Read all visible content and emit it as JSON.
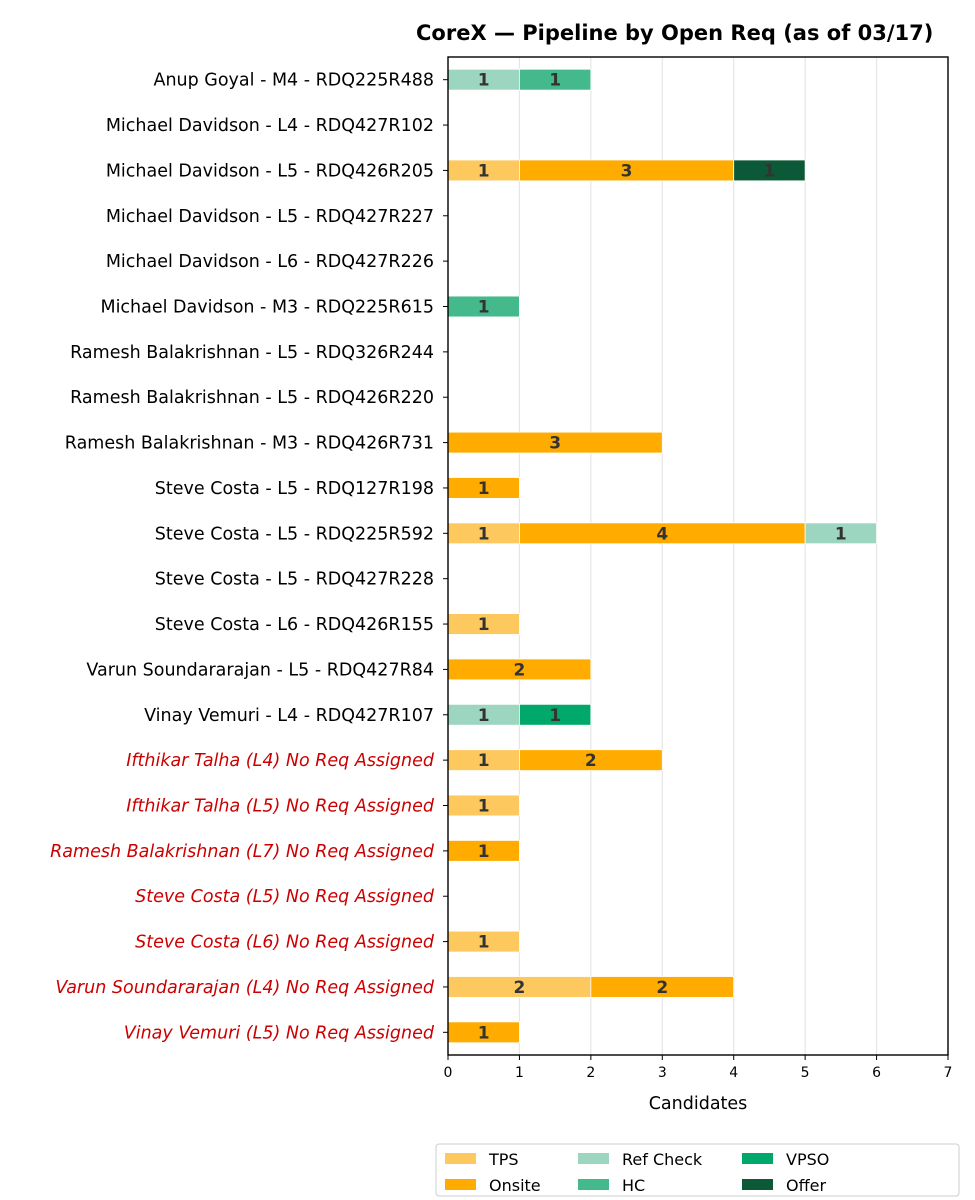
{
  "chart_data": {
    "type": "bar",
    "orientation": "horizontal",
    "stacked": true,
    "title": "CoreX — Pipeline by Open Req (as of 03/17)",
    "xlabel": "Candidates",
    "ylabel": "",
    "xlim": [
      0,
      7
    ],
    "xticks": [
      "0",
      "1",
      "2",
      "3",
      "4",
      "5",
      "6",
      "7"
    ],
    "grid": "vertical",
    "legend_position": "bottom",
    "categories": [
      "Anup Goyal - M4 - RDQ225R488",
      "Michael Davidson - L4 - RDQ427R102",
      "Michael Davidson - L5 - RDQ426R205",
      "Michael Davidson - L5 - RDQ427R227",
      "Michael Davidson - L6 - RDQ427R226",
      "Michael Davidson - M3 - RDQ225R615",
      "Ramesh Balakrishnan - L5 - RDQ326R244",
      "Ramesh Balakrishnan - L5 - RDQ426R220",
      "Ramesh Balakrishnan - M3 - RDQ426R731",
      "Steve Costa - L5 - RDQ127R198",
      "Steve Costa - L5 - RDQ225R592",
      "Steve Costa - L5 - RDQ427R228",
      "Steve Costa - L6 - RDQ426R155",
      "Varun Soundararajan - L5 - RDQ427R84",
      "Vinay Vemuri - L4 - RDQ427R107",
      "Ifthikar Talha (L4) No Req Assigned",
      "Ifthikar Talha (L5) No Req Assigned",
      "Ramesh Balakrishnan (L7) No Req Assigned",
      "Steve Costa (L5) No Req Assigned",
      "Steve Costa (L6) No Req Assigned",
      "Varun Soundararajan (L4) No Req Assigned",
      "Vinay Vemuri (L5) No Req Assigned"
    ],
    "highlighted_categories": [
      "Ifthikar Talha (L4) No Req Assigned",
      "Ifthikar Talha (L5) No Req Assigned",
      "Ramesh Balakrishnan (L7) No Req Assigned",
      "Steve Costa (L5) No Req Assigned",
      "Steve Costa (L6) No Req Assigned",
      "Varun Soundararajan (L4) No Req Assigned",
      "Vinay Vemuri (L5) No Req Assigned"
    ],
    "highlight_color": "#cc0000",
    "series": [
      {
        "name": "TPS",
        "color": "#fdc85e",
        "values": [
          0,
          0,
          1,
          0,
          0,
          0,
          0,
          0,
          0,
          0,
          1,
          0,
          1,
          0,
          0,
          1,
          1,
          0,
          0,
          1,
          2,
          0
        ]
      },
      {
        "name": "Onsite",
        "color": "#ffab00",
        "values": [
          0,
          0,
          3,
          0,
          0,
          0,
          0,
          0,
          3,
          1,
          4,
          0,
          0,
          2,
          0,
          2,
          0,
          1,
          0,
          0,
          2,
          1
        ]
      },
      {
        "name": "Ref Check",
        "color": "#9dd6c0",
        "values": [
          1,
          0,
          0,
          0,
          0,
          0,
          0,
          0,
          0,
          0,
          1,
          0,
          0,
          0,
          1,
          0,
          0,
          0,
          0,
          0,
          0,
          0
        ]
      },
      {
        "name": "HC",
        "color": "#43b98c",
        "values": [
          1,
          0,
          0,
          0,
          0,
          1,
          0,
          0,
          0,
          0,
          0,
          0,
          0,
          0,
          0,
          0,
          0,
          0,
          0,
          0,
          0,
          0
        ]
      },
      {
        "name": "VPSO",
        "color": "#00a86b",
        "values": [
          0,
          0,
          0,
          0,
          0,
          0,
          0,
          0,
          0,
          0,
          0,
          0,
          0,
          0,
          1,
          0,
          0,
          0,
          0,
          0,
          0,
          0
        ]
      },
      {
        "name": "Offer",
        "color": "#0b5936",
        "values": [
          0,
          0,
          1,
          0,
          0,
          0,
          0,
          0,
          0,
          0,
          0,
          0,
          0,
          0,
          0,
          0,
          0,
          0,
          0,
          0,
          0,
          0
        ]
      }
    ]
  }
}
